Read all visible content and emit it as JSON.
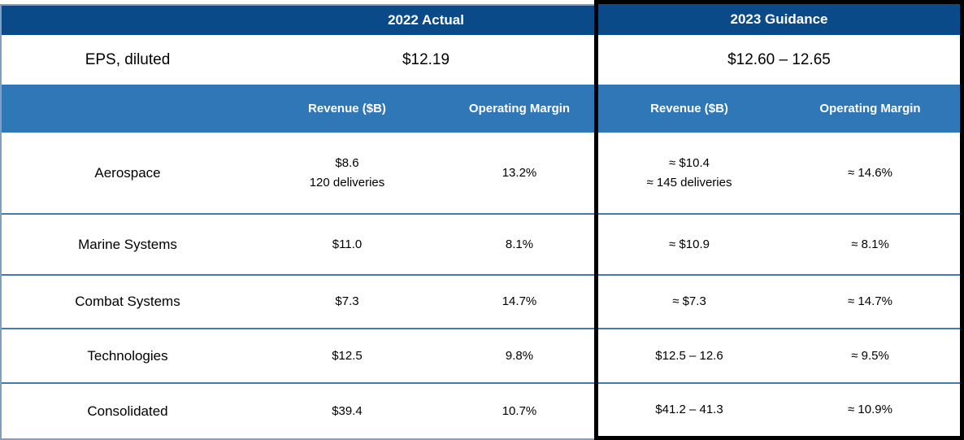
{
  "table": {
    "col_groups": {
      "actual": "2022 Actual",
      "guidance": "2023 Guidance"
    },
    "eps": {
      "label": "EPS, diluted",
      "actual": "$12.19",
      "guidance": "$12.60 – 12.65"
    },
    "subheaders": {
      "revenue": "Revenue ($B)",
      "margin": "Operating Margin"
    },
    "rows": [
      {
        "label": "Aerospace",
        "actual_revenue": "$8.6",
        "actual_revenue_note": "120 deliveries",
        "actual_margin": "13.2%",
        "guidance_revenue": "≈ $10.4",
        "guidance_revenue_note": "≈ 145 deliveries",
        "guidance_margin": "≈ 14.6%"
      },
      {
        "label": "Marine Systems",
        "actual_revenue": "$11.0",
        "actual_margin": "8.1%",
        "guidance_revenue": "≈ $10.9",
        "guidance_margin": "≈ 8.1%"
      },
      {
        "label": "Combat Systems",
        "actual_revenue": "$7.3",
        "actual_margin": "14.7%",
        "guidance_revenue": "≈ $7.3",
        "guidance_margin": "≈ 14.7%"
      },
      {
        "label": "Technologies",
        "actual_revenue": "$12.5",
        "actual_margin": "9.8%",
        "guidance_revenue": "$12.5 – 12.6",
        "guidance_margin": "≈ 9.5%"
      },
      {
        "label": "Consolidated",
        "actual_revenue": "$39.4",
        "actual_margin": "10.7%",
        "guidance_revenue": "$41.2 – 41.3",
        "guidance_margin": "≈ 10.9%"
      }
    ],
    "colors": {
      "header_dark_blue": "#0b4a88",
      "subheader_blue": "#3077b7",
      "row_divider_blue": "#4679b2",
      "outer_border_steel": "#7f9fc4",
      "guidance_border_black": "#000000"
    }
  }
}
